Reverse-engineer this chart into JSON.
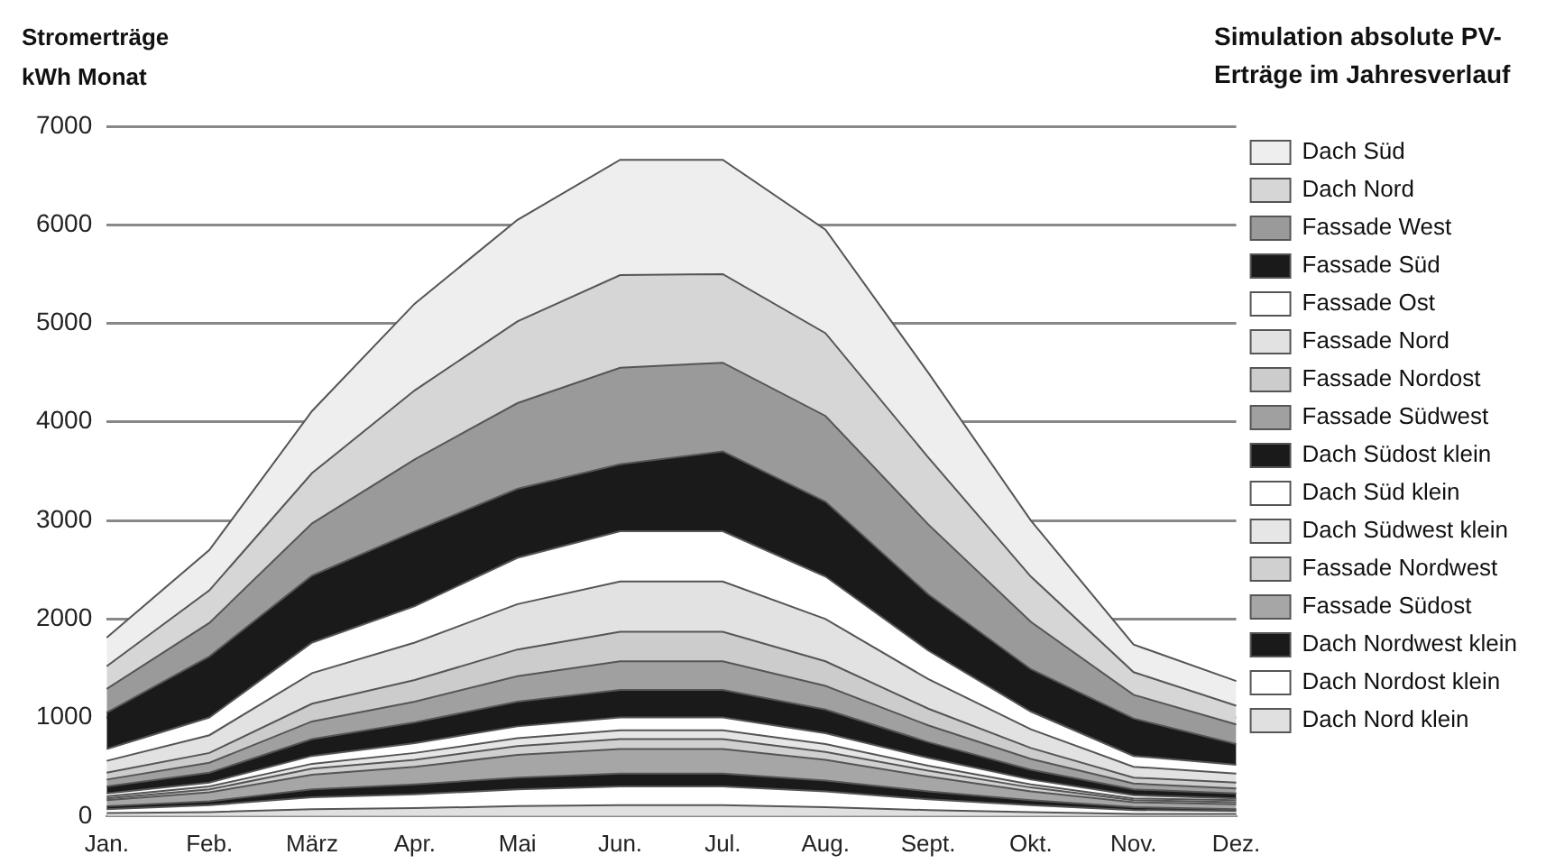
{
  "chart_data": {
    "type": "area",
    "title": "Simulation absolute PV-Erträge im Jahresverlauf",
    "ylabel": "Stromerträge kWh Monat",
    "categories": [
      "Jan.",
      "Feb.",
      "März",
      "Apr.",
      "Mai",
      "Jun.",
      "Jul.",
      "Aug.",
      "Sept.",
      "Okt.",
      "Nov.",
      "Dez."
    ],
    "stacked": true,
    "ylim": [
      0,
      7000
    ],
    "yticks": [
      0,
      1000,
      2000,
      3000,
      4000,
      5000,
      6000,
      7000
    ],
    "grid": "y",
    "legend": "right",
    "series": [
      {
        "name": "Dach Nord klein",
        "color": "#e0e0e0",
        "values": [
          30,
          40,
          70,
          80,
          100,
          110,
          110,
          90,
          60,
          40,
          20,
          20
        ]
      },
      {
        "name": "Dach Nordost klein",
        "color": "#ffffff",
        "values": [
          40,
          70,
          120,
          140,
          170,
          190,
          190,
          160,
          110,
          70,
          40,
          30
        ]
      },
      {
        "name": "Dach Nordwest klein",
        "color": "#1a1a1a",
        "values": [
          30,
          40,
          80,
          100,
          120,
          130,
          130,
          110,
          80,
          50,
          30,
          20
        ]
      },
      {
        "name": "Fassade Südost",
        "color": "#a6a6a6",
        "values": [
          60,
          90,
          150,
          180,
          230,
          250,
          250,
          210,
          150,
          90,
          50,
          50
        ]
      },
      {
        "name": "Fassade Nordwest",
        "color": "#d0d0d0",
        "values": [
          20,
          30,
          60,
          70,
          90,
          100,
          100,
          80,
          60,
          40,
          20,
          20
        ]
      },
      {
        "name": "Dach Südwest klein",
        "color": "#e6e6e6",
        "values": [
          20,
          30,
          50,
          70,
          80,
          90,
          90,
          80,
          50,
          30,
          20,
          20
        ]
      },
      {
        "name": "Dach Süd klein",
        "color": "#ffffff",
        "values": [
          30,
          40,
          80,
          100,
          120,
          130,
          130,
          110,
          80,
          50,
          30,
          20
        ]
      },
      {
        "name": "Dach Südost klein",
        "color": "#1a1a1a",
        "values": [
          70,
          100,
          170,
          210,
          250,
          280,
          280,
          240,
          160,
          100,
          60,
          50
        ]
      },
      {
        "name": "Fassade Südwest",
        "color": "#a0a0a0",
        "values": [
          70,
          100,
          180,
          210,
          260,
          290,
          290,
          240,
          170,
          110,
          60,
          50
        ]
      },
      {
        "name": "Fassade Nordost",
        "color": "#cccccc",
        "values": [
          70,
          100,
          180,
          220,
          270,
          300,
          300,
          250,
          170,
          110,
          60,
          60
        ]
      },
      {
        "name": "Fassade Nord",
        "color": "#e2e2e2",
        "values": [
          120,
          180,
          310,
          380,
          460,
          510,
          510,
          430,
          300,
          190,
          110,
          90
        ]
      },
      {
        "name": "Fassade Ost",
        "color": "#ffffff",
        "values": [
          120,
          180,
          310,
          370,
          470,
          510,
          510,
          430,
          290,
          180,
          110,
          90
        ]
      },
      {
        "name": "Fassade Süd",
        "color": "#1a1a1a",
        "values": [
          370,
          620,
          680,
          760,
          700,
          680,
          810,
          760,
          570,
          430,
          380,
          210
        ]
      },
      {
        "name": "Fassade West",
        "color": "#9a9a9a",
        "values": [
          240,
          340,
          530,
          730,
          870,
          980,
          900,
          870,
          710,
          480,
          240,
          200
        ]
      },
      {
        "name": "Dach Nord",
        "color": "#d6d6d6",
        "values": [
          230,
          330,
          510,
          700,
          830,
          940,
          900,
          840,
          680,
          460,
          230,
          190
        ]
      },
      {
        "name": "Dach Süd",
        "color": "#eeeeee",
        "values": [
          290,
          410,
          630,
          880,
          1030,
          1170,
          1160,
          1050,
          860,
          570,
          280,
          250
        ]
      }
    ]
  }
}
